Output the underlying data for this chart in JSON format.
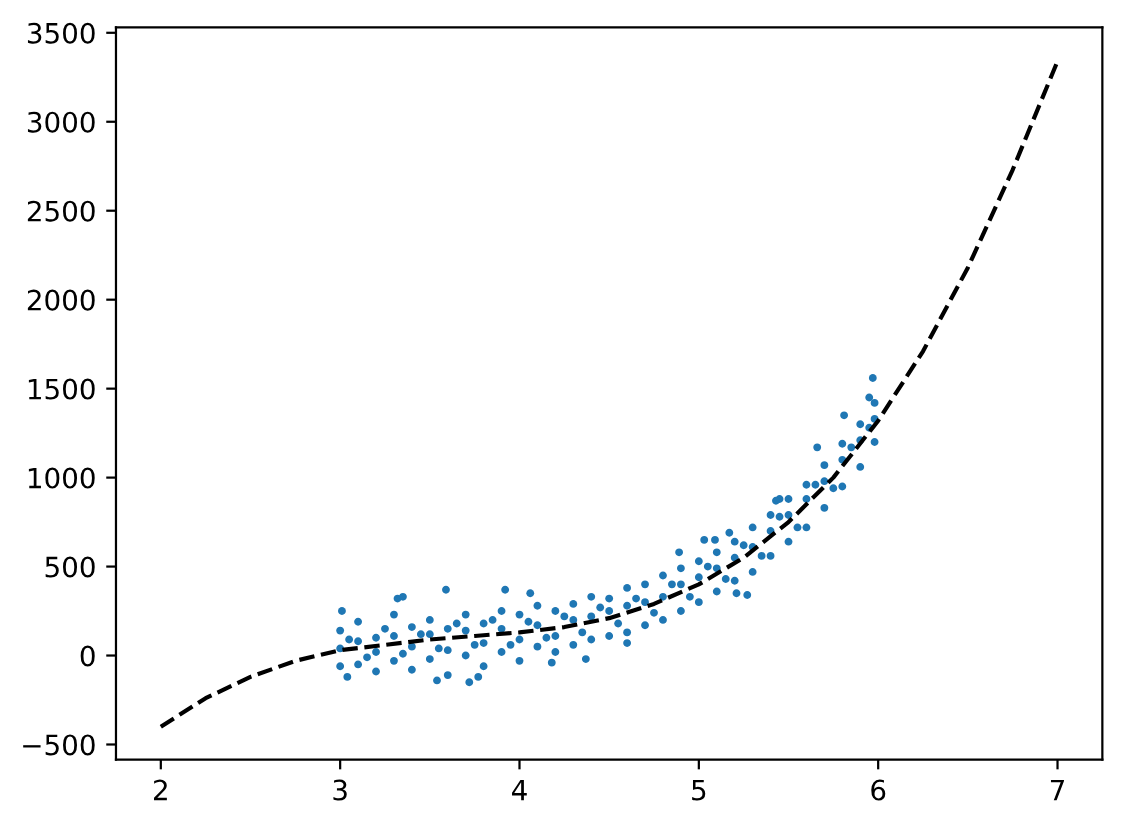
{
  "chart_data": {
    "type": "scatter",
    "series": [
      {
        "color": "#1f77b4",
        "marker": "circle",
        "x": [
          3.0,
          3.0,
          3.0,
          3.1,
          3.1,
          3.1,
          3.2,
          3.2,
          3.2,
          3.3,
          3.3,
          3.3,
          3.4,
          3.4,
          3.4,
          3.5,
          3.5,
          3.5,
          3.6,
          3.6,
          3.6,
          3.7,
          3.7,
          3.7,
          3.8,
          3.8,
          3.8,
          3.9,
          3.9,
          3.9,
          4.0,
          4.0,
          4.0,
          4.1,
          4.1,
          4.1,
          4.2,
          4.2,
          4.2,
          4.3,
          4.3,
          4.3,
          4.4,
          4.4,
          4.4,
          4.5,
          4.5,
          4.5,
          4.6,
          4.6,
          4.6,
          4.7,
          4.7,
          4.7,
          4.8,
          4.8,
          4.8,
          4.9,
          4.9,
          4.9,
          5.0,
          5.0,
          5.0,
          5.1,
          5.1,
          5.1,
          5.2,
          5.2,
          5.2,
          5.3,
          5.3,
          5.3,
          5.4,
          5.4,
          5.4,
          5.5,
          5.5,
          5.5,
          5.6,
          5.6,
          5.6,
          5.7,
          5.7,
          5.7,
          5.8,
          5.8,
          5.8,
          5.9,
          5.9,
          5.9,
          5.98,
          5.98,
          5.98,
          5.97,
          5.95,
          5.81,
          5.66,
          4.89,
          5.03,
          5.09,
          5.17,
          5.27,
          5.21,
          5.45,
          5.43,
          3.59,
          3.92,
          4.06,
          3.32,
          3.35,
          3.01,
          3.04,
          3.54,
          3.72,
          3.77,
          4.18,
          4.37,
          4.6,
          3.05,
          3.15,
          3.25,
          3.35,
          3.45,
          3.55,
          3.65,
          3.75,
          3.85,
          3.95,
          4.05,
          4.15,
          4.25,
          4.35,
          4.45,
          4.55,
          4.65,
          4.75,
          4.85,
          4.95,
          5.05,
          5.15,
          5.25,
          5.35,
          5.45,
          5.55,
          5.65,
          5.75,
          5.85,
          5.95
        ],
        "values": [
          140,
          40,
          -60,
          190,
          80,
          -50,
          100,
          20,
          -90,
          230,
          110,
          -30,
          160,
          50,
          -80,
          200,
          120,
          -20,
          150,
          30,
          -110,
          230,
          140,
          0,
          180,
          70,
          -60,
          250,
          150,
          20,
          230,
          90,
          -30,
          280,
          170,
          50,
          250,
          110,
          20,
          290,
          200,
          60,
          330,
          220,
          90,
          320,
          250,
          110,
          380,
          280,
          130,
          400,
          300,
          170,
          450,
          330,
          200,
          490,
          400,
          250,
          530,
          440,
          300,
          580,
          490,
          360,
          640,
          550,
          420,
          720,
          610,
          470,
          790,
          700,
          560,
          880,
          790,
          640,
          960,
          880,
          720,
          1070,
          980,
          830,
          1190,
          1100,
          950,
          1300,
          1210,
          1060,
          1420,
          1330,
          1200,
          1560,
          1450,
          1350,
          1170,
          580,
          650,
          650,
          690,
          340,
          350,
          880,
          870,
          370,
          370,
          350,
          320,
          330,
          250,
          -120,
          -140,
          -150,
          -120,
          -40,
          -20,
          70,
          90,
          -10,
          150,
          10,
          120,
          40,
          180,
          60,
          200,
          60,
          190,
          100,
          220,
          130,
          270,
          180,
          320,
          240,
          400,
          330,
          500,
          430,
          620,
          560,
          780,
          720,
          960,
          940,
          1170,
          1280
        ]
      },
      {
        "type": "line",
        "color": "#000000",
        "marker": "none",
        "line_style": "dashed",
        "x": [
          2.0,
          2.25,
          2.5,
          2.75,
          3.0,
          3.25,
          3.5,
          3.75,
          4.0,
          4.25,
          4.5,
          4.75,
          5.0,
          5.25,
          5.5,
          5.75,
          6.0,
          6.25,
          6.5,
          6.75,
          7.0
        ],
        "values": [
          -400,
          -240,
          -120,
          -30,
          30,
          60,
          90,
          110,
          130,
          160,
          210,
          290,
          400,
          550,
          750,
          1000,
          1320,
          1710,
          2180,
          2730,
          3340
        ]
      }
    ],
    "xlim": [
      1.75,
      7.25
    ],
    "ylim": [
      -585,
      3530
    ],
    "xticks": [
      2,
      3,
      4,
      5,
      6,
      7
    ],
    "yticks": [
      {
        "value": -500,
        "label": "−500"
      },
      0,
      500,
      1000,
      1500,
      2000,
      2500,
      3000,
      3500
    ],
    "grid": false
  }
}
